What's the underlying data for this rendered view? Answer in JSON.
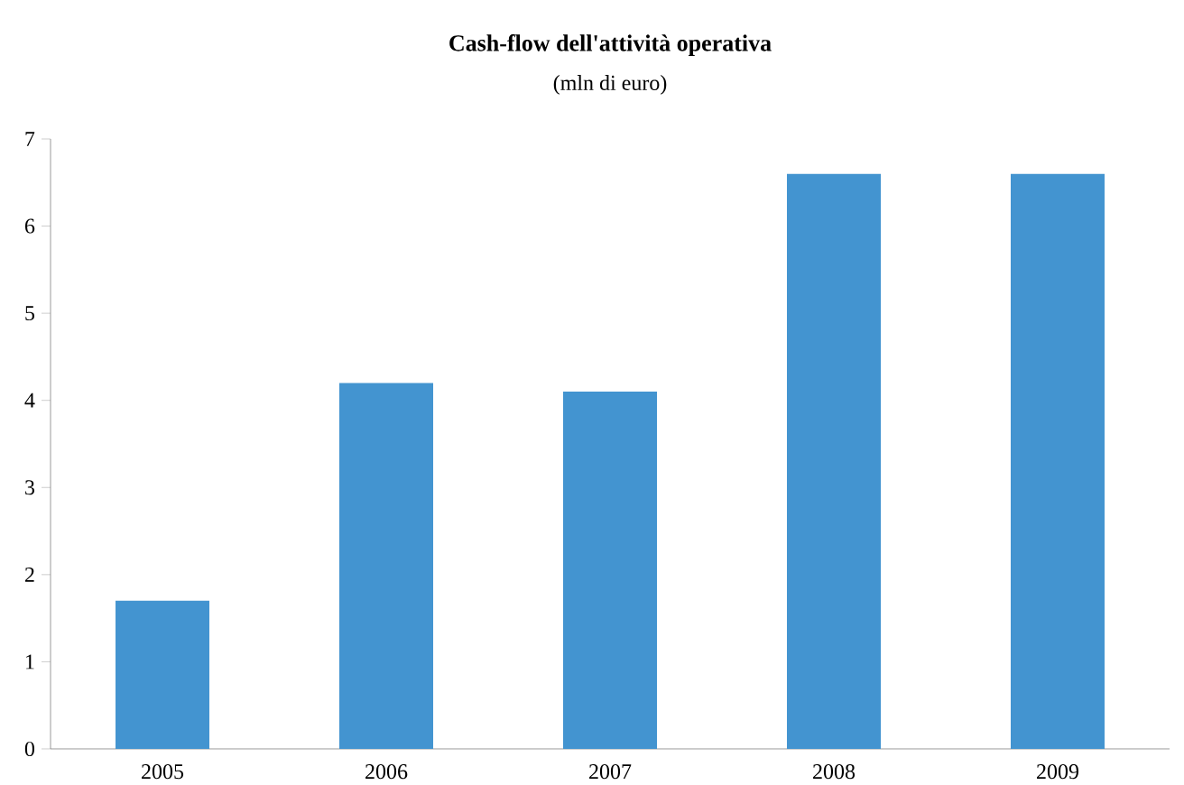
{
  "chart_data": {
    "type": "bar",
    "title": "Cash-flow dell'attività operativa",
    "subtitle": "(mln di euro)",
    "categories": [
      "2005",
      "2006",
      "2007",
      "2008",
      "2009"
    ],
    "values": [
      1.7,
      4.2,
      4.1,
      6.6,
      6.6
    ],
    "color": "#4394d0",
    "ylim": [
      0,
      7
    ],
    "yticks": [
      0,
      1,
      2,
      3,
      4,
      5,
      6,
      7
    ]
  }
}
